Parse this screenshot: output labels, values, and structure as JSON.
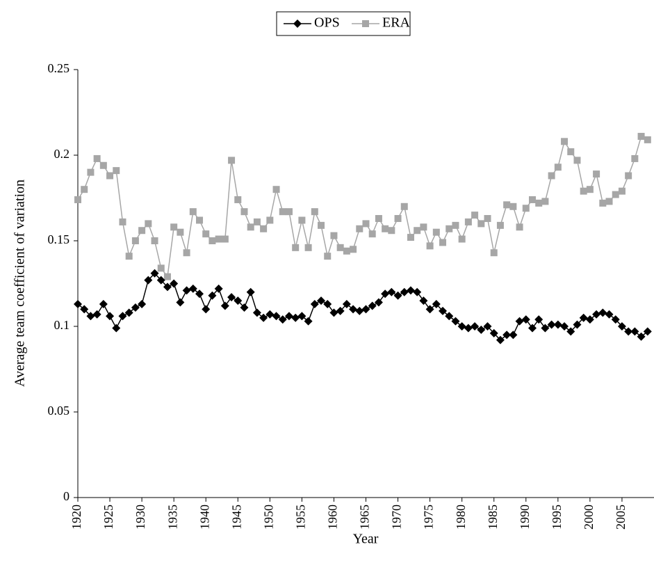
{
  "chart_data": {
    "type": "line",
    "x_label": "Year",
    "y_label": "Average team coefficient of variation",
    "x": [
      1920,
      1921,
      1922,
      1923,
      1924,
      1925,
      1926,
      1927,
      1928,
      1929,
      1930,
      1931,
      1932,
      1933,
      1934,
      1935,
      1936,
      1937,
      1938,
      1939,
      1940,
      1941,
      1942,
      1943,
      1944,
      1945,
      1946,
      1947,
      1948,
      1949,
      1950,
      1951,
      1952,
      1953,
      1954,
      1955,
      1956,
      1957,
      1958,
      1959,
      1960,
      1961,
      1962,
      1963,
      1964,
      1965,
      1966,
      1967,
      1968,
      1969,
      1970,
      1971,
      1972,
      1973,
      1974,
      1975,
      1976,
      1977,
      1978,
      1979,
      1980,
      1981,
      1982,
      1983,
      1984,
      1985,
      1986,
      1987,
      1988,
      1989,
      1990,
      1991,
      1992,
      1993,
      1994,
      1995,
      1996,
      1997,
      1998,
      1999,
      2000,
      2001,
      2002,
      2003,
      2004,
      2005,
      2006,
      2007,
      2008,
      2009
    ],
    "series": [
      {
        "name": "OPS",
        "color": "#000000",
        "marker": "diamond",
        "values": [
          0.113,
          0.11,
          0.106,
          0.107,
          0.113,
          0.106,
          0.099,
          0.106,
          0.108,
          0.111,
          0.113,
          0.127,
          0.131,
          0.127,
          0.123,
          0.125,
          0.114,
          0.121,
          0.122,
          0.119,
          0.11,
          0.118,
          0.122,
          0.112,
          0.117,
          0.115,
          0.111,
          0.12,
          0.108,
          0.105,
          0.107,
          0.106,
          0.104,
          0.106,
          0.105,
          0.106,
          0.103,
          0.113,
          0.115,
          0.113,
          0.108,
          0.109,
          0.113,
          0.11,
          0.109,
          0.11,
          0.112,
          0.114,
          0.119,
          0.12,
          0.118,
          0.12,
          0.121,
          0.12,
          0.115,
          0.11,
          0.113,
          0.109,
          0.106,
          0.103,
          0.1,
          0.099,
          0.1,
          0.098,
          0.1,
          0.096,
          0.092,
          0.095,
          0.095,
          0.103,
          0.104,
          0.099,
          0.104,
          0.099,
          0.101,
          0.101,
          0.1,
          0.097,
          0.101,
          0.105,
          0.104,
          0.107,
          0.108,
          0.107,
          0.104,
          0.1,
          0.097,
          0.097,
          0.094,
          0.097
        ]
      },
      {
        "name": "ERA",
        "color": "#a6a6a6",
        "marker": "square",
        "values": [
          0.174,
          0.18,
          0.19,
          0.198,
          0.194,
          0.188,
          0.191,
          0.161,
          0.141,
          0.15,
          0.156,
          0.16,
          0.15,
          0.134,
          0.129,
          0.158,
          0.155,
          0.143,
          0.167,
          0.162,
          0.154,
          0.15,
          0.151,
          0.151,
          0.197,
          0.174,
          0.167,
          0.158,
          0.161,
          0.157,
          0.162,
          0.18,
          0.167,
          0.167,
          0.146,
          0.162,
          0.146,
          0.167,
          0.159,
          0.141,
          0.153,
          0.146,
          0.144,
          0.145,
          0.157,
          0.16,
          0.154,
          0.163,
          0.157,
          0.156,
          0.163,
          0.17,
          0.152,
          0.156,
          0.158,
          0.147,
          0.155,
          0.149,
          0.157,
          0.159,
          0.151,
          0.161,
          0.165,
          0.16,
          0.163,
          0.143,
          0.159,
          0.171,
          0.17,
          0.158,
          0.169,
          0.174,
          0.172,
          0.173,
          0.188,
          0.193,
          0.208,
          0.202,
          0.197,
          0.179,
          0.18,
          0.189,
          0.172,
          0.173,
          0.177,
          0.179,
          0.188,
          0.198,
          0.211,
          0.209
        ]
      }
    ],
    "xlim": [
      1920,
      2010
    ],
    "xticks": [
      1920,
      1925,
      1930,
      1935,
      1940,
      1945,
      1950,
      1955,
      1960,
      1965,
      1970,
      1975,
      1980,
      1985,
      1990,
      1995,
      2000,
      2005
    ],
    "ylim": [
      0,
      0.25
    ],
    "yticks": [
      0,
      0.05,
      0.1,
      0.15,
      0.2,
      0.25
    ],
    "grid": false,
    "legend": "top"
  }
}
